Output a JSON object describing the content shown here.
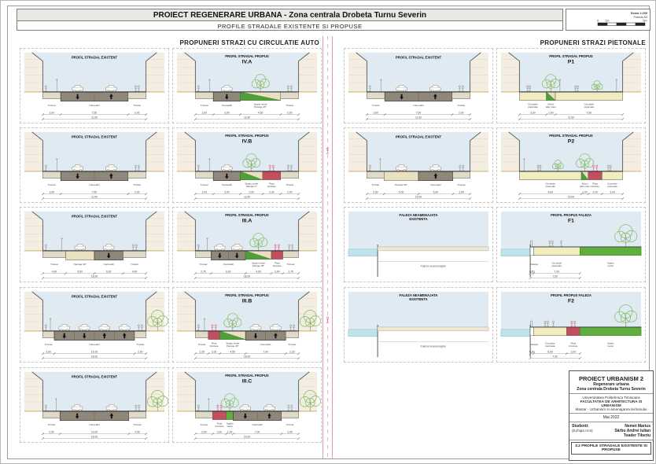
{
  "header": {
    "title": "PROIECT REGENERARE URBANA - Zona centrala Drobeta Turnu Severin",
    "subtitle": "PROFILE STRADALE EXISTENTE SI PROPUSE"
  },
  "scale_box": {
    "line1": "Scara 1:200",
    "line2": "Format A0",
    "ticks": [
      "0",
      "1m",
      "5m"
    ]
  },
  "sections": {
    "left": "PROPUNERI STRAZI CU CIRCULATIE AUTO",
    "right": "PROPUNERI STRAZI PIETONALE"
  },
  "colors": {
    "sky": "#dfeaf2",
    "building": "#f3eee1",
    "stripe": "#e3dcc9",
    "ground": "#c9b261",
    "road": "#8e887b",
    "sidewalk": "#e0dbc8",
    "parking": "#eadfc0",
    "green": "#4f9e38",
    "green_rect": "#5fae3e",
    "tree": "#86bd63",
    "tree_big": "#7db95a",
    "bike": "#c24f60",
    "ped": "#f2ecc1",
    "water": "#bfe3ea",
    "pink": "#e26b84",
    "pink_line": "#e39aa9",
    "glyph": "#a39d92"
  },
  "panels": [
    {
      "side": "left",
      "row": 1,
      "col": 1,
      "kind": "street",
      "title": "PROFIL STRADAL EXISTENT",
      "code": "",
      "total": "11,50",
      "segments": [
        {
          "t": "sidewalk",
          "label": "Trotuar",
          "dim": "2,00",
          "m": 2
        },
        {
          "t": "road",
          "label": "Carosabil",
          "dim": "7,50",
          "m": 7.5,
          "lanes": [
            "d",
            "u"
          ]
        },
        {
          "t": "sidewalk",
          "label": "Trotuar",
          "dim": "2,00",
          "m": 2
        }
      ]
    },
    {
      "side": "left",
      "row": 1,
      "col": 2,
      "kind": "street",
      "title": "PROFIL STRADAL PROPUS",
      "code": "IV.A",
      "total": "11,50",
      "segments": [
        {
          "t": "sidewalk",
          "label": "Trotuar",
          "dim": "2,00",
          "m": 2
        },
        {
          "t": "road",
          "label": "Carosabil",
          "dim": "3,00",
          "m": 3,
          "lanes": [
            "d"
          ]
        },
        {
          "t": "greenwedge",
          "label": "Spatiu verde\nParcaje 45°",
          "dim": "4,50",
          "m": 4.5
        },
        {
          "t": "sidewalk",
          "label": "Trotuar",
          "dim": "2,00",
          "m": 2
        }
      ]
    },
    {
      "side": "left",
      "row": 2,
      "col": 1,
      "kind": "street",
      "title": "PROFIL STRADAL EXISTENT",
      "code": "",
      "total": "11,50",
      "segments": [
        {
          "t": "sidewalk",
          "label": "Trotuar",
          "dim": "2,00",
          "m": 2
        },
        {
          "t": "road",
          "label": "Carosabil",
          "dim": "7,50",
          "m": 7.5,
          "lanes": [
            "d",
            "u"
          ]
        },
        {
          "t": "sidewalk",
          "label": "Trotuar",
          "dim": "2,00",
          "m": 2
        }
      ]
    },
    {
      "side": "left",
      "row": 2,
      "col": 2,
      "kind": "street",
      "title": "PROFIL STRADAL PROPUS",
      "code": "IV.B",
      "total": "11,50",
      "segments": [
        {
          "t": "sidewalk",
          "label": "Trotuar",
          "dim": "2,00",
          "m": 2
        },
        {
          "t": "road",
          "label": "Carosabil",
          "dim": "3,00",
          "m": 3,
          "lanes": [
            "d"
          ]
        },
        {
          "t": "greenwedge",
          "label": "Spatiu verde\nParcaje 0°",
          "dim": "2,50",
          "m": 2.5
        },
        {
          "t": "bike",
          "label": "Pista\nbiciclete",
          "dim": "2,00",
          "m": 2
        },
        {
          "t": "sidewalk",
          "label": "Trotuar",
          "dim": "2,00",
          "m": 2
        }
      ]
    },
    {
      "side": "left",
      "row": 3,
      "col": 1,
      "kind": "street",
      "title": "PROFIL STRADAL EXISTENT",
      "code": "",
      "total": "18,00",
      "segments": [
        {
          "t": "sidewalk",
          "label": "Trotuar",
          "dim": "4,00",
          "m": 4
        },
        {
          "t": "parking",
          "label": "Parcaje 90°",
          "dim": "5,00",
          "m": 5
        },
        {
          "t": "road",
          "label": "Carosabil",
          "dim": "5,00",
          "m": 5,
          "lanes": [
            "d"
          ]
        },
        {
          "t": "sidewalk",
          "label": "Trotuar",
          "dim": "4,00",
          "m": 4
        }
      ]
    },
    {
      "side": "left",
      "row": 3,
      "col": 2,
      "kind": "street",
      "title": "PROFIL STRADAL PROPUS",
      "code": "III.A",
      "total": "18,00",
      "segments": [
        {
          "t": "sidewalk",
          "label": "Trotuar",
          "dim": "2,75",
          "m": 2.75
        },
        {
          "t": "road",
          "label": "Carosabil",
          "dim": "6,00",
          "m": 6,
          "lanes": [
            "d",
            "d"
          ]
        },
        {
          "t": "greenwedge",
          "label": "Spatiu verde\nParcaje 45°",
          "dim": "4,50",
          "m": 4.5
        },
        {
          "t": "bike",
          "label": "Pista\nbiciclete",
          "dim": "2,00",
          "m": 2
        },
        {
          "t": "sidewalk",
          "label": "Trotuar",
          "dim": "2,75",
          "m": 2.75
        }
      ]
    },
    {
      "side": "left",
      "row": 4,
      "col": 1,
      "kind": "street",
      "title": "PROFIL STRADAL EXISTENT",
      "code": "",
      "total": "18,00",
      "edge_tree": true,
      "segments": [
        {
          "t": "sidewalk",
          "label": "Trotuar",
          "dim": "2,00",
          "m": 2
        },
        {
          "t": "road",
          "label": "Carosabil",
          "dim": "14,00",
          "m": 14,
          "lanes": [
            "d",
            "d",
            "u",
            "u"
          ]
        },
        {
          "t": "sidewalk",
          "label": "Trotuar",
          "dim": "2,00",
          "m": 2
        }
      ]
    },
    {
      "side": "left",
      "row": 4,
      "col": 2,
      "kind": "street",
      "title": "PROFIL STRADAL PROPUS",
      "code": "III.B",
      "total": "18,00",
      "edge_tree": true,
      "segments": [
        {
          "t": "sidewalk",
          "label": "Trotuar",
          "dim": "2,25",
          "m": 2.25
        },
        {
          "t": "bike",
          "label": "Pista\nbiciclete",
          "dim": "2,00",
          "m": 2
        },
        {
          "t": "greenwedge",
          "label": "Spatiu verde\nParcaje 45°",
          "dim": "4,50",
          "m": 4.5
        },
        {
          "t": "road",
          "label": "Carosabil",
          "dim": "7,00",
          "m": 7,
          "lanes": [
            "d",
            "u"
          ]
        },
        {
          "t": "sidewalk",
          "label": "Trotuar",
          "dim": "2,25",
          "m": 2.25
        }
      ]
    },
    {
      "side": "left",
      "row": 5,
      "col": 1,
      "kind": "street",
      "title": "PROFIL STRADAL EXISTENT",
      "code": "",
      "total": "15,00",
      "edge_tree": true,
      "segments": [
        {
          "t": "sidewalk",
          "label": "Trotuar",
          "dim": "2,50",
          "m": 2.5
        },
        {
          "t": "road",
          "label": "Carosabil",
          "dim": "10,00",
          "m": 10,
          "lanes": [
            "d",
            "u"
          ]
        },
        {
          "t": "sidewalk",
          "label": "Trotuar",
          "dim": "2,50",
          "m": 2.5
        }
      ]
    },
    {
      "side": "left",
      "row": 5,
      "col": 2,
      "kind": "street",
      "title": "PROFIL STRADAL PROPUS",
      "code": "III.C",
      "total": "15,00",
      "edge_tree": true,
      "segments": [
        {
          "t": "sidewalk",
          "label": "Trotuar",
          "dim": "2,50",
          "m": 2.5
        },
        {
          "t": "bike",
          "label": "Pista\nbiciclete",
          "dim": "2,00",
          "m": 2
        },
        {
          "t": "greenrect",
          "label": "Spatiu\nverde",
          "dim": "1,00",
          "m": 1
        },
        {
          "t": "road",
          "label": "Carosabil",
          "dim": "7,00",
          "m": 7,
          "lanes": [
            "d",
            "u"
          ]
        },
        {
          "t": "sidewalk",
          "label": "Trotuar",
          "dim": "2,50",
          "m": 2.5
        }
      ]
    },
    {
      "side": "right",
      "row": 1,
      "col": 1,
      "kind": "street",
      "title": "PROFIL STRADAL EXISTENT",
      "code": "",
      "total": "11,50",
      "segments": [
        {
          "t": "sidewalk",
          "label": "Trotuar",
          "dim": "2,00",
          "m": 2
        },
        {
          "t": "road",
          "label": "Carosabil",
          "dim": "7,50",
          "m": 7.5,
          "lanes": [
            "d",
            "u"
          ]
        },
        {
          "t": "sidewalk",
          "label": "Trotuar",
          "dim": "2,00",
          "m": 2
        }
      ]
    },
    {
      "side": "right",
      "row": 1,
      "col": 2,
      "kind": "street",
      "title": "PROFIL STRADAL PROPUS",
      "code": "P1",
      "total": "11,50",
      "segments": [
        {
          "t": "ped",
          "label": "Circulatie\npietonala",
          "dim": "3,00",
          "m": 3
        },
        {
          "t": "greenwedge",
          "label": "Arbori\ntalie mare",
          "dim": "1,00",
          "m": 1
        },
        {
          "t": "ped",
          "label": "Circulatie\npietonala",
          "dim": "7,50",
          "m": 7.5
        }
      ]
    },
    {
      "side": "right",
      "row": 2,
      "col": 1,
      "kind": "street",
      "title": "PROFIL STRADAL EXISTENT",
      "code": "",
      "total": "15,00",
      "segments": [
        {
          "t": "sidewalk",
          "label": "Trotuar",
          "dim": "2,50",
          "m": 2.5
        },
        {
          "t": "parking",
          "label": "Parcaje 90°",
          "dim": "5,00",
          "m": 5
        },
        {
          "t": "road",
          "label": "Carosabil",
          "dim": "5,00",
          "m": 5,
          "lanes": [
            "u"
          ]
        },
        {
          "t": "sidewalk",
          "label": "Trotuar",
          "dim": "2,50",
          "m": 2.5
        }
      ]
    },
    {
      "side": "right",
      "row": 2,
      "col": 2,
      "kind": "street",
      "title": "PROFIL STRADAL PROPUS",
      "code": "P2",
      "total": "15,00",
      "segments": [
        {
          "t": "ped",
          "label": "Circulatie\npietonala",
          "dim": "9,00",
          "m": 9
        },
        {
          "t": "greenwedge",
          "label": "Arbori\ntalie mare",
          "dim": "1,00",
          "m": 1
        },
        {
          "t": "bike",
          "label": "Pista\nbiciclete",
          "dim": "2,00",
          "m": 2
        },
        {
          "t": "ped",
          "label": "Circulatie\npietonala",
          "dim": "3,00",
          "m": 3
        }
      ]
    },
    {
      "side": "right",
      "row": 3,
      "col": 1,
      "kind": "faleza_exist",
      "title": "FALEZA NEAMENAJATA",
      "code": "EXISTENTA",
      "surface_label": "Faleza neamenajata"
    },
    {
      "side": "right",
      "row": 3,
      "col": 2,
      "kind": "faleza_prop",
      "title": "PROFIL PROPUS FALEZA",
      "code": "F1",
      "total": "7,50",
      "segments": [
        {
          "t": "parapet",
          "label": "Parapet",
          "dim": "0,50",
          "m": 0.5
        },
        {
          "t": "ped",
          "label": "Circulatie\npietonala",
          "dim": "7,00",
          "m": 7
        },
        {
          "t": "greenrect",
          "label": "Spatiu\nverde",
          "dim": "",
          "m": 0
        }
      ]
    },
    {
      "side": "right",
      "row": 4,
      "col": 1,
      "kind": "faleza_exist",
      "title": "FALEZA NEAMENAJATA",
      "code": "EXISTENTA",
      "surface_label": "Faleza neamenajata"
    },
    {
      "side": "right",
      "row": 4,
      "col": 2,
      "kind": "faleza_prop",
      "title": "PROFIL PROPUS FALEZA",
      "code": "F2",
      "total": "7,50",
      "segments": [
        {
          "t": "parapet",
          "label": "Parapet",
          "dim": "0,50",
          "m": 0.5
        },
        {
          "t": "ped",
          "label": "Circulatie\npietonala",
          "dim": "5,00",
          "m": 5
        },
        {
          "t": "bike",
          "label": "Pista\nbiciclete",
          "dim": "2,00",
          "m": 2
        },
        {
          "t": "greenrect",
          "label": "Spatiu\nverde",
          "dim": "",
          "m": 0
        }
      ]
    }
  ],
  "titleblock": {
    "title": "PROIECT URBANISM 2",
    "line1": "Regenerare urbana",
    "line2": "Zona centrala Drobeta Turnu Severin",
    "uni1": "Universitatea Politehnica Timisoara",
    "uni2": "FACULTATEA DE ARHITECTURA SI URBANISM",
    "uni3": "Master - Urbanism si amenajarea teritoriului",
    "date": "Mai 2022",
    "students_label": "Studenti:",
    "team_label": "(Echipa nr.6)",
    "students": [
      "Nemet Marius",
      "Sârbu Andrei Iulian",
      "Toader Tiberiu"
    ],
    "sheet_code": "3.2 PROFILE STRADALE EXISTENTE SI PROPUSE"
  }
}
